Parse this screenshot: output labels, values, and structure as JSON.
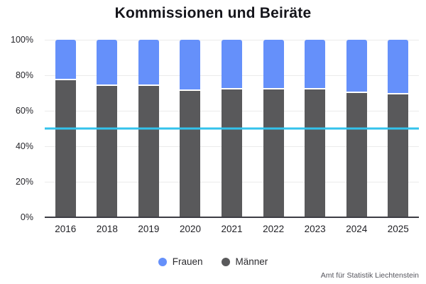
{
  "title": "Kommissionen und Beiräte",
  "footer": "Amt für Statistik Liechtenstein",
  "colors": {
    "frauen": "#6590fa",
    "maenner": "#59595b",
    "reference_line": "#34c3ec",
    "gridline": "#ebebeb",
    "axis_line": "#3d3d44"
  },
  "chart_data": {
    "type": "bar",
    "stacked": true,
    "stacking": "percent",
    "title": "Kommissionen und Beiräte",
    "xlabel": "",
    "ylabel": "",
    "categories": [
      "2016",
      "2018",
      "2019",
      "2020",
      "2021",
      "2022",
      "2023",
      "2024",
      "2025"
    ],
    "series": [
      {
        "name": "Frauen",
        "color": "#6590fa",
        "values": [
          22,
          25,
          25,
          28,
          27,
          27,
          27,
          29,
          30
        ]
      },
      {
        "name": "Männer",
        "color": "#59595b",
        "values": [
          78,
          75,
          75,
          72,
          73,
          73,
          73,
          71,
          70
        ]
      }
    ],
    "ylim": [
      0,
      100
    ],
    "yticks": [
      0,
      20,
      40,
      60,
      80,
      100
    ],
    "ytick_suffix": "%",
    "reference_line": {
      "value": 50,
      "color": "#34c3ec"
    },
    "grid": true,
    "legend_position": "bottom",
    "source": "Amt für Statistik Liechtenstein"
  }
}
